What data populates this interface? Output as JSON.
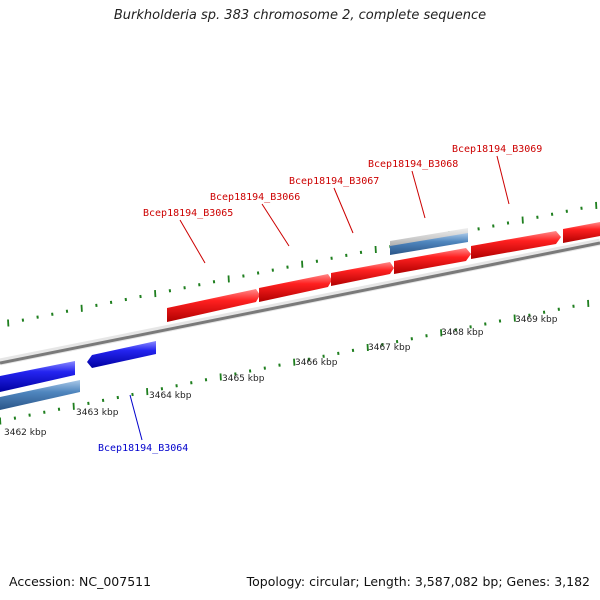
{
  "title": "Burkholderia sp. 383 chromosome 2, complete sequence",
  "footer": {
    "accession": "Accession: NC_007511",
    "summary": "Topology: circular; Length: 3,587,082 bp; Genes: 3,182"
  },
  "colors": {
    "forward_gene": "#ee1c1c",
    "reverse_gene": "#2121e6",
    "other_feature": "#4b85c0",
    "backbone": "#777777",
    "tick": "#1f7f1f",
    "forward_label": "#cc0000",
    "reverse_label": "#0000cc"
  },
  "ruler": {
    "unit": "kbp",
    "labels": [
      "3462 kbp",
      "3463 kbp",
      "3464 kbp",
      "3465 kbp",
      "3466 kbp",
      "3467 kbp",
      "3468 kbp",
      "3469 kbp"
    ]
  },
  "genes": [
    {
      "label": "Bcep18194_B3064",
      "strand": "reverse"
    },
    {
      "label": "Bcep18194_B3065",
      "strand": "forward"
    },
    {
      "label": "Bcep18194_B3066",
      "strand": "forward"
    },
    {
      "label": "Bcep18194_B3067",
      "strand": "forward"
    },
    {
      "label": "Bcep18194_B3068",
      "strand": "forward"
    },
    {
      "label": "Bcep18194_B3069",
      "strand": "forward"
    }
  ]
}
